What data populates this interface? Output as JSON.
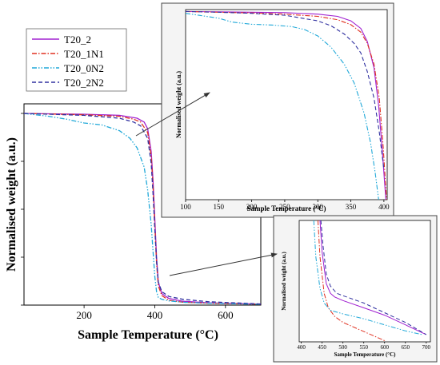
{
  "chart_data": [
    {
      "type": "line",
      "title": "",
      "xlabel": "Sample Temperature (°C)",
      "ylabel": "Normalised weight (a.u.)",
      "xlim": [
        30,
        700
      ],
      "ylim": [
        0,
        1.05
      ],
      "xticks": [
        200,
        400,
        600
      ],
      "y_tick_labels_shown": false,
      "grid": false,
      "legend": "top-left",
      "series": [
        {
          "name": "T20_2",
          "color": "#a020d0",
          "style": "solid",
          "x": [
            30,
            100,
            200,
            300,
            350,
            370,
            380,
            390,
            395,
            400,
            405,
            410,
            420,
            440,
            480,
            550,
            700
          ],
          "y": [
            1.0,
            0.998,
            0.996,
            0.99,
            0.975,
            0.955,
            0.92,
            0.8,
            0.65,
            0.45,
            0.25,
            0.12,
            0.06,
            0.035,
            0.02,
            0.012,
            0.005
          ]
        },
        {
          "name": "T20_1N1",
          "color": "#e03020",
          "style": "dashdot",
          "x": [
            30,
            100,
            200,
            300,
            340,
            360,
            380,
            390,
            395,
            400,
            405,
            410,
            420,
            440,
            480,
            550,
            700
          ],
          "y": [
            1.0,
            0.997,
            0.993,
            0.985,
            0.97,
            0.955,
            0.9,
            0.78,
            0.62,
            0.42,
            0.22,
            0.1,
            0.05,
            0.025,
            0.015,
            0.01,
            0.004
          ]
        },
        {
          "name": "T20_0N2",
          "color": "#20a8d8",
          "style": "dashdotdot",
          "x": [
            30,
            100,
            150,
            200,
            250,
            300,
            330,
            350,
            370,
            380,
            390,
            395,
            400,
            405,
            410,
            420,
            440,
            480,
            550,
            700
          ],
          "y": [
            1.0,
            0.985,
            0.97,
            0.95,
            0.94,
            0.91,
            0.87,
            0.82,
            0.72,
            0.6,
            0.42,
            0.28,
            0.15,
            0.07,
            0.04,
            0.03,
            0.022,
            0.015,
            0.01,
            0.004
          ]
        },
        {
          "name": "T20_2N2",
          "color": "#3030a0",
          "style": "dashed",
          "x": [
            30,
            100,
            200,
            300,
            340,
            360,
            380,
            390,
            395,
            400,
            405,
            410,
            420,
            440,
            480,
            550,
            700
          ],
          "y": [
            1.0,
            0.996,
            0.99,
            0.975,
            0.955,
            0.935,
            0.87,
            0.74,
            0.58,
            0.4,
            0.23,
            0.12,
            0.07,
            0.045,
            0.03,
            0.018,
            0.006
          ]
        }
      ]
    },
    {
      "type": "line",
      "title": "",
      "xlabel": "Sample Temperature (°C)",
      "ylabel": "Normalised weight (a.u.)",
      "xlim": [
        100,
        405
      ],
      "ylim": [
        0.5,
        1.005
      ],
      "xticks": [
        100,
        150,
        200,
        250,
        300,
        350,
        400
      ],
      "y_tick_labels_shown": false,
      "legend": "none",
      "series": [
        {
          "name": "T20_2",
          "color": "#a020d0",
          "style": "solid",
          "x": [
            100,
            150,
            200,
            250,
            300,
            330,
            350,
            365,
            375,
            385,
            392,
            398,
            403
          ],
          "y": [
            1.0,
            0.999,
            0.998,
            0.997,
            0.993,
            0.987,
            0.975,
            0.955,
            0.92,
            0.85,
            0.75,
            0.62,
            0.5
          ]
        },
        {
          "name": "T20_1N1",
          "color": "#e03020",
          "style": "dashdot",
          "x": [
            100,
            150,
            200,
            250,
            300,
            330,
            350,
            365,
            375,
            385,
            393,
            399,
            404
          ],
          "y": [
            1.0,
            0.998,
            0.996,
            0.993,
            0.987,
            0.978,
            0.965,
            0.945,
            0.915,
            0.86,
            0.77,
            0.64,
            0.5
          ]
        },
        {
          "name": "T20_0N2",
          "color": "#20a8d8",
          "style": "dashdotdot",
          "x": [
            100,
            120,
            150,
            170,
            200,
            230,
            260,
            280,
            300,
            320,
            340,
            355,
            370,
            380,
            387,
            392
          ],
          "y": [
            0.995,
            0.99,
            0.982,
            0.972,
            0.966,
            0.964,
            0.96,
            0.952,
            0.935,
            0.905,
            0.86,
            0.81,
            0.73,
            0.65,
            0.57,
            0.5
          ]
        },
        {
          "name": "T20_2N2",
          "color": "#3030a0",
          "style": "dashed",
          "x": [
            100,
            150,
            200,
            250,
            300,
            320,
            340,
            355,
            365,
            375,
            385,
            393,
            400
          ],
          "y": [
            1.0,
            0.998,
            0.995,
            0.99,
            0.975,
            0.962,
            0.94,
            0.915,
            0.89,
            0.84,
            0.77,
            0.68,
            0.58
          ]
        }
      ]
    },
    {
      "type": "line",
      "title": "",
      "xlabel": "Sample Temperature (°C)",
      "ylabel": "Normalised weight (a.u.)",
      "xlim": [
        395,
        710
      ],
      "ylim": [
        0,
        0.5
      ],
      "xticks": [
        400,
        450,
        500,
        550,
        600,
        650,
        700
      ],
      "y_tick_labels_shown": false,
      "legend": "none",
      "series": [
        {
          "name": "T20_2",
          "color": "#a020d0",
          "style": "solid",
          "x": [
            445,
            450,
            460,
            470,
            480,
            500,
            550,
            600,
            650,
            700
          ],
          "y": [
            0.5,
            0.37,
            0.24,
            0.2,
            0.185,
            0.17,
            0.14,
            0.11,
            0.07,
            0.03
          ]
        },
        {
          "name": "T20_1N1",
          "color": "#e03020",
          "style": "dashdot",
          "x": [
            440,
            445,
            455,
            465,
            480,
            500,
            540,
            580,
            600
          ],
          "y": [
            0.5,
            0.35,
            0.2,
            0.14,
            0.105,
            0.08,
            0.05,
            0.02,
            0.005
          ]
        },
        {
          "name": "T20_0N2",
          "color": "#20a8d8",
          "style": "dashdotdot",
          "x": [
            430,
            435,
            445,
            455,
            470,
            500,
            550,
            600,
            650,
            690
          ],
          "y": [
            0.5,
            0.35,
            0.22,
            0.16,
            0.13,
            0.115,
            0.095,
            0.07,
            0.045,
            0.03
          ]
        },
        {
          "name": "T20_2N2",
          "color": "#3030a0",
          "style": "dashed",
          "x": [
            447,
            452,
            460,
            470,
            485,
            500,
            550,
            600,
            650,
            700
          ],
          "y": [
            0.5,
            0.4,
            0.28,
            0.23,
            0.2,
            0.19,
            0.16,
            0.12,
            0.08,
            0.03
          ]
        }
      ]
    }
  ]
}
